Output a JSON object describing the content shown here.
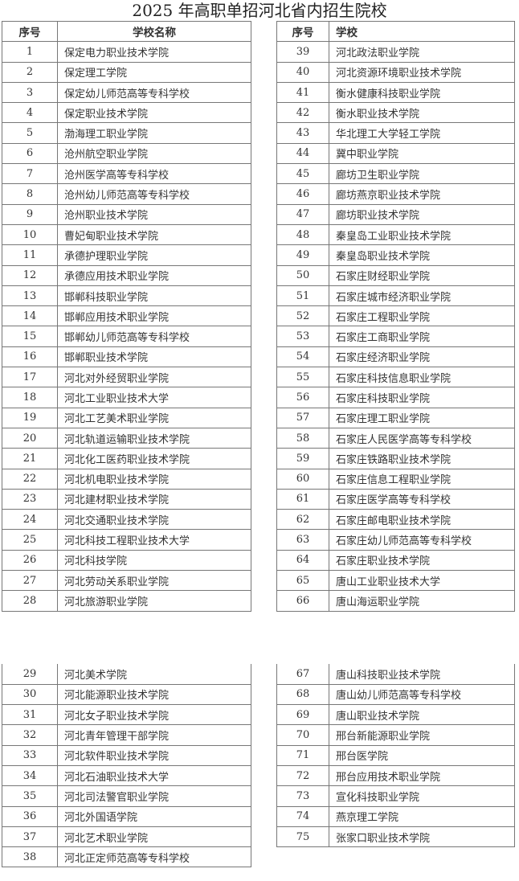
{
  "title": "2025 年高职单招河北省内招生院校",
  "left_header": {
    "num": "序号",
    "name": "学校名称"
  },
  "right_header": {
    "num": "序号",
    "name": "学校"
  },
  "left_top": [
    [
      "1",
      "保定电力职业技术学院"
    ],
    [
      "2",
      "保定理工学院"
    ],
    [
      "3",
      "保定幼儿师范高等专科学校"
    ],
    [
      "4",
      "保定职业技术学院"
    ],
    [
      "5",
      "渤海理工职业学院"
    ],
    [
      "6",
      "沧州航空职业学院"
    ],
    [
      "7",
      "沧州医学高等专科学校"
    ],
    [
      "8",
      "沧州幼儿师范高等专科学校"
    ],
    [
      "9",
      "沧州职业技术学院"
    ],
    [
      "10",
      "曹妃甸职业技术学院"
    ],
    [
      "11",
      "承德护理职业学院"
    ],
    [
      "12",
      "承德应用技术职业学院"
    ],
    [
      "13",
      "邯郸科技职业学院"
    ],
    [
      "14",
      "邯郸应用技术职业学院"
    ],
    [
      "15",
      "邯郸幼儿师范高等专科学校"
    ],
    [
      "16",
      "邯郸职业技术学院"
    ],
    [
      "17",
      "河北对外经贸职业学院"
    ],
    [
      "18",
      "河北工业职业技术大学"
    ],
    [
      "19",
      "河北工艺美术职业学院"
    ],
    [
      "20",
      "河北轨道运输职业技术学院"
    ],
    [
      "21",
      "河北化工医药职业技术学院"
    ],
    [
      "22",
      "河北机电职业技术学院"
    ],
    [
      "23",
      "河北建材职业技术学院"
    ],
    [
      "24",
      "河北交通职业技术学院"
    ],
    [
      "25",
      "河北科技工程职业技术大学"
    ],
    [
      "26",
      "河北科技学院"
    ],
    [
      "27",
      "河北劳动关系职业学院"
    ],
    [
      "28",
      "河北旅游职业学院"
    ]
  ],
  "right_top": [
    [
      "39",
      "河北政法职业学院"
    ],
    [
      "40",
      "河北资源环境职业技术学院"
    ],
    [
      "41",
      "衡水健康科技职业学院"
    ],
    [
      "42",
      "衡水职业技术学院"
    ],
    [
      "43",
      "华北理工大学轻工学院"
    ],
    [
      "44",
      "冀中职业学院"
    ],
    [
      "45",
      "廊坊卫生职业学院"
    ],
    [
      "46",
      "廊坊燕京职业技术学院"
    ],
    [
      "47",
      "廊坊职业技术学院"
    ],
    [
      "48",
      "秦皇岛工业职业技术学院"
    ],
    [
      "49",
      "秦皇岛职业技术学院"
    ],
    [
      "50",
      "石家庄财经职业学院"
    ],
    [
      "51",
      "石家庄城市经济职业学院"
    ],
    [
      "52",
      "石家庄工程职业学院"
    ],
    [
      "53",
      "石家庄工商职业学院"
    ],
    [
      "54",
      "石家庄经济职业学院"
    ],
    [
      "55",
      "石家庄科技信息职业学院"
    ],
    [
      "56",
      "石家庄科技职业学院"
    ],
    [
      "57",
      "石家庄理工职业学院"
    ],
    [
      "58",
      "石家庄人民医学高等专科学校"
    ],
    [
      "59",
      "石家庄铁路职业技术学院"
    ],
    [
      "60",
      "石家庄信息工程职业学院"
    ],
    [
      "61",
      "石家庄医学高等专科学校"
    ],
    [
      "62",
      "石家庄邮电职业技术学院"
    ],
    [
      "63",
      "石家庄幼儿师范高等专科学校"
    ],
    [
      "64",
      "石家庄职业技术学院"
    ],
    [
      "65",
      "唐山工业职业技术大学"
    ],
    [
      "66",
      "唐山海运职业学院"
    ]
  ],
  "left_bottom": [
    [
      "29",
      "河北美术学院"
    ],
    [
      "30",
      "河北能源职业技术学院"
    ],
    [
      "31",
      "河北女子职业技术学院"
    ],
    [
      "32",
      "河北青年管理干部学院"
    ],
    [
      "33",
      "河北软件职业技术学院"
    ],
    [
      "34",
      "河北石油职业技术大学"
    ],
    [
      "35",
      "河北司法警官职业学院"
    ],
    [
      "36",
      "河北外国语学院"
    ],
    [
      "37",
      "河北艺术职业学院"
    ],
    [
      "38",
      "河北正定师范高等专科学校"
    ]
  ],
  "right_bottom": [
    [
      "67",
      "唐山科技职业技术学院"
    ],
    [
      "68",
      "唐山幼儿师范高等专科学校"
    ],
    [
      "69",
      "唐山职业技术学院"
    ],
    [
      "70",
      "邢台新能源职业学院"
    ],
    [
      "71",
      "邢台医学院"
    ],
    [
      "72",
      "邢台应用技术职业学院"
    ],
    [
      "73",
      "宣化科技职业学院"
    ],
    [
      "74",
      "燕京理工学院"
    ],
    [
      "75",
      "张家口职业技术学院"
    ]
  ]
}
